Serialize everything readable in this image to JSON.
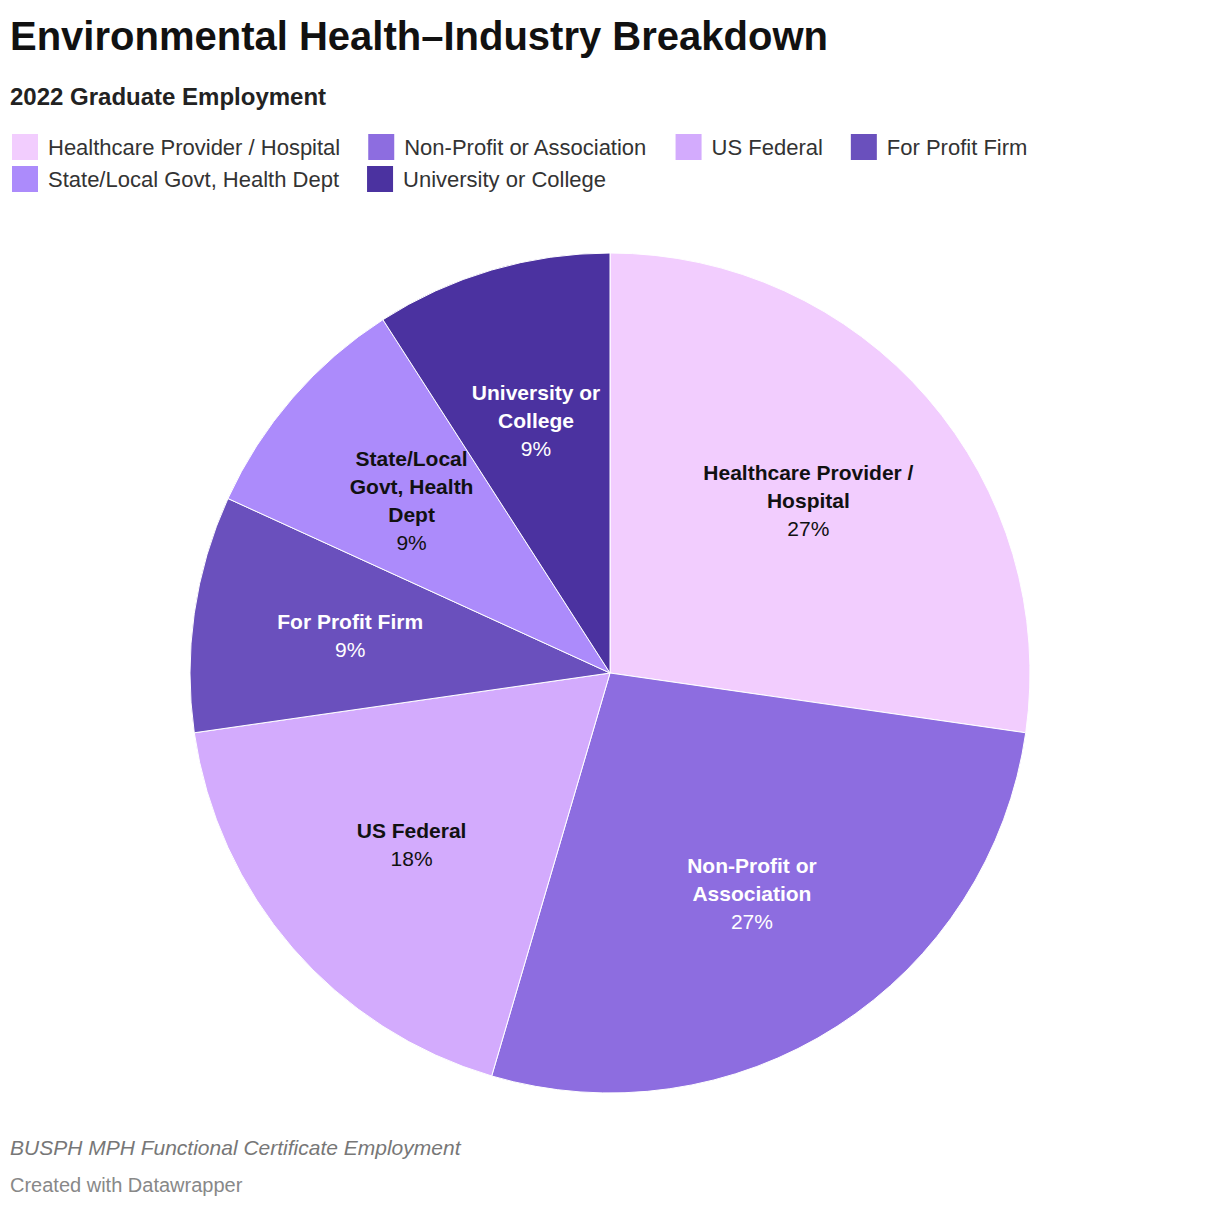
{
  "chart_data": {
    "type": "pie",
    "title": "Environmental Health–Industry Breakdown",
    "subtitle": "2022 Graduate Employment",
    "categories": [
      "Healthcare Provider / Hospital",
      "Non-Profit or Association",
      "US Federal",
      "For Profit Firm",
      "State/Local Govt, Health Dept",
      "University or College"
    ],
    "values": [
      27,
      27,
      18,
      9,
      9,
      9
    ],
    "value_labels": [
      "27%",
      "27%",
      "18%",
      "9%",
      "9%",
      "9%"
    ],
    "colors": [
      "#f2cdfe",
      "#8d6de0",
      "#d3abfd",
      "#6a50bd",
      "#ac8bfb",
      "#4b32a0"
    ],
    "legend": "top",
    "data_labels": true,
    "source": "BUSPH MPH Functional Certificate Employment",
    "credit": "Created with Datawrapper"
  }
}
